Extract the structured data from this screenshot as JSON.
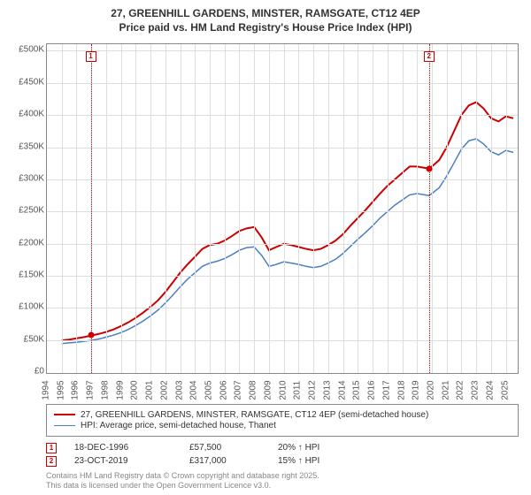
{
  "title_line1": "27, GREENHILL GARDENS, MINSTER, RAMSGATE, CT12 4EP",
  "title_line2": "Price paid vs. HM Land Registry's House Price Index (HPI)",
  "chart": {
    "type": "line",
    "background_color": "#ffffff",
    "grid_color": "#dddddd",
    "border_color": "#888888",
    "x_axis": {
      "min": 1994,
      "max": 2025.8,
      "ticks": [
        1994,
        1995,
        1996,
        1997,
        1998,
        1999,
        2000,
        2001,
        2002,
        2003,
        2004,
        2005,
        2006,
        2007,
        2008,
        2009,
        2010,
        2011,
        2012,
        2013,
        2014,
        2015,
        2016,
        2017,
        2018,
        2019,
        2020,
        2021,
        2022,
        2023,
        2024,
        2025
      ],
      "label_fontsize": 10,
      "label_color": "#555555",
      "rotation": -90
    },
    "y_axis": {
      "min": 0,
      "max": 510000,
      "ticks": [
        0,
        50000,
        100000,
        150000,
        200000,
        250000,
        300000,
        350000,
        400000,
        450000,
        500000
      ],
      "tick_labels": [
        "£0",
        "£50K",
        "£100K",
        "£150K",
        "£200K",
        "£250K",
        "£300K",
        "£350K",
        "£400K",
        "£450K",
        "£500K"
      ],
      "label_fontsize": 10,
      "label_color": "#555555"
    },
    "series": [
      {
        "name": "27, GREENHILL GARDENS, MINSTER, RAMSGATE, CT12 4EP (semi-detached house)",
        "color": "#cc0000",
        "line_width": 2,
        "data": [
          [
            1995.0,
            50000
          ],
          [
            1995.5,
            51000
          ],
          [
            1996.0,
            53000
          ],
          [
            1996.5,
            55000
          ],
          [
            1997.0,
            57500
          ],
          [
            1997.5,
            60000
          ],
          [
            1998.0,
            63000
          ],
          [
            1998.5,
            67000
          ],
          [
            1999.0,
            72000
          ],
          [
            1999.5,
            78000
          ],
          [
            2000.0,
            85000
          ],
          [
            2000.5,
            93000
          ],
          [
            2001.0,
            102000
          ],
          [
            2001.5,
            112000
          ],
          [
            2002.0,
            125000
          ],
          [
            2002.5,
            140000
          ],
          [
            2003.0,
            155000
          ],
          [
            2003.5,
            168000
          ],
          [
            2004.0,
            180000
          ],
          [
            2004.5,
            192000
          ],
          [
            2005.0,
            198000
          ],
          [
            2005.5,
            200000
          ],
          [
            2006.0,
            205000
          ],
          [
            2006.5,
            212000
          ],
          [
            2007.0,
            220000
          ],
          [
            2007.5,
            224000
          ],
          [
            2008.0,
            226000
          ],
          [
            2008.5,
            210000
          ],
          [
            2009.0,
            190000
          ],
          [
            2009.5,
            195000
          ],
          [
            2010.0,
            200000
          ],
          [
            2010.5,
            198000
          ],
          [
            2011.0,
            195000
          ],
          [
            2011.5,
            192000
          ],
          [
            2012.0,
            190000
          ],
          [
            2012.5,
            192000
          ],
          [
            2013.0,
            198000
          ],
          [
            2013.5,
            205000
          ],
          [
            2014.0,
            215000
          ],
          [
            2014.5,
            228000
          ],
          [
            2015.0,
            240000
          ],
          [
            2015.5,
            252000
          ],
          [
            2016.0,
            265000
          ],
          [
            2016.5,
            278000
          ],
          [
            2017.0,
            290000
          ],
          [
            2017.5,
            300000
          ],
          [
            2018.0,
            310000
          ],
          [
            2018.5,
            320000
          ],
          [
            2019.0,
            320000
          ],
          [
            2019.5,
            318000
          ],
          [
            2019.8,
            317000
          ],
          [
            2020.0,
            320000
          ],
          [
            2020.5,
            330000
          ],
          [
            2021.0,
            350000
          ],
          [
            2021.5,
            375000
          ],
          [
            2022.0,
            400000
          ],
          [
            2022.5,
            415000
          ],
          [
            2023.0,
            420000
          ],
          [
            2023.5,
            410000
          ],
          [
            2024.0,
            395000
          ],
          [
            2024.5,
            390000
          ],
          [
            2025.0,
            398000
          ],
          [
            2025.5,
            395000
          ]
        ]
      },
      {
        "name": "HPI: Average price, semi-detached house, Thanet",
        "color": "#4a7fc4",
        "line_width": 1.5,
        "data": [
          [
            1995.0,
            45000
          ],
          [
            1995.5,
            46000
          ],
          [
            1996.0,
            47000
          ],
          [
            1996.5,
            48500
          ],
          [
            1997.0,
            50000
          ],
          [
            1997.5,
            52000
          ],
          [
            1998.0,
            55000
          ],
          [
            1998.5,
            58000
          ],
          [
            1999.0,
            62000
          ],
          [
            1999.5,
            67000
          ],
          [
            2000.0,
            73000
          ],
          [
            2000.5,
            80000
          ],
          [
            2001.0,
            88000
          ],
          [
            2001.5,
            97000
          ],
          [
            2002.0,
            108000
          ],
          [
            2002.5,
            120000
          ],
          [
            2003.0,
            133000
          ],
          [
            2003.5,
            145000
          ],
          [
            2004.0,
            155000
          ],
          [
            2004.5,
            165000
          ],
          [
            2005.0,
            170000
          ],
          [
            2005.5,
            173000
          ],
          [
            2006.0,
            177000
          ],
          [
            2006.5,
            183000
          ],
          [
            2007.0,
            190000
          ],
          [
            2007.5,
            194000
          ],
          [
            2008.0,
            195000
          ],
          [
            2008.5,
            182000
          ],
          [
            2009.0,
            165000
          ],
          [
            2009.5,
            168000
          ],
          [
            2010.0,
            172000
          ],
          [
            2010.5,
            170000
          ],
          [
            2011.0,
            168000
          ],
          [
            2011.5,
            165000
          ],
          [
            2012.0,
            163000
          ],
          [
            2012.5,
            165000
          ],
          [
            2013.0,
            170000
          ],
          [
            2013.5,
            176000
          ],
          [
            2014.0,
            185000
          ],
          [
            2014.5,
            196000
          ],
          [
            2015.0,
            207000
          ],
          [
            2015.5,
            217000
          ],
          [
            2016.0,
            228000
          ],
          [
            2016.5,
            240000
          ],
          [
            2017.0,
            250000
          ],
          [
            2017.5,
            260000
          ],
          [
            2018.0,
            268000
          ],
          [
            2018.5,
            276000
          ],
          [
            2019.0,
            278000
          ],
          [
            2019.5,
            276000
          ],
          [
            2019.8,
            275000
          ],
          [
            2020.0,
            278000
          ],
          [
            2020.5,
            287000
          ],
          [
            2021.0,
            305000
          ],
          [
            2021.5,
            326000
          ],
          [
            2022.0,
            347000
          ],
          [
            2022.5,
            360000
          ],
          [
            2023.0,
            363000
          ],
          [
            2023.5,
            355000
          ],
          [
            2024.0,
            343000
          ],
          [
            2024.5,
            338000
          ],
          [
            2025.0,
            345000
          ],
          [
            2025.5,
            342000
          ]
        ]
      }
    ],
    "sale_markers": [
      {
        "n": "1",
        "x": 1996.96,
        "y": 57500,
        "dot_color": "#cc0000"
      },
      {
        "n": "2",
        "x": 2019.81,
        "y": 317000,
        "dot_color": "#cc0000"
      }
    ]
  },
  "legend": {
    "border_color": "#888888",
    "fontsize": 10,
    "items": [
      {
        "color": "#cc0000",
        "width": 2,
        "label": "27, GREENHILL GARDENS, MINSTER, RAMSGATE, CT12 4EP (semi-detached house)"
      },
      {
        "color": "#4a7fc4",
        "width": 1.5,
        "label": "HPI: Average price, semi-detached house, Thanet"
      }
    ]
  },
  "sales_table": [
    {
      "n": "1",
      "date": "18-DEC-1996",
      "price": "£57,500",
      "delta": "20% ↑ HPI"
    },
    {
      "n": "2",
      "date": "23-OCT-2019",
      "price": "£317,000",
      "delta": "15% ↑ HPI"
    }
  ],
  "footer_line1": "Contains HM Land Registry data © Crown copyright and database right 2025.",
  "footer_line2": "This data is licensed under the Open Government Licence v3.0."
}
